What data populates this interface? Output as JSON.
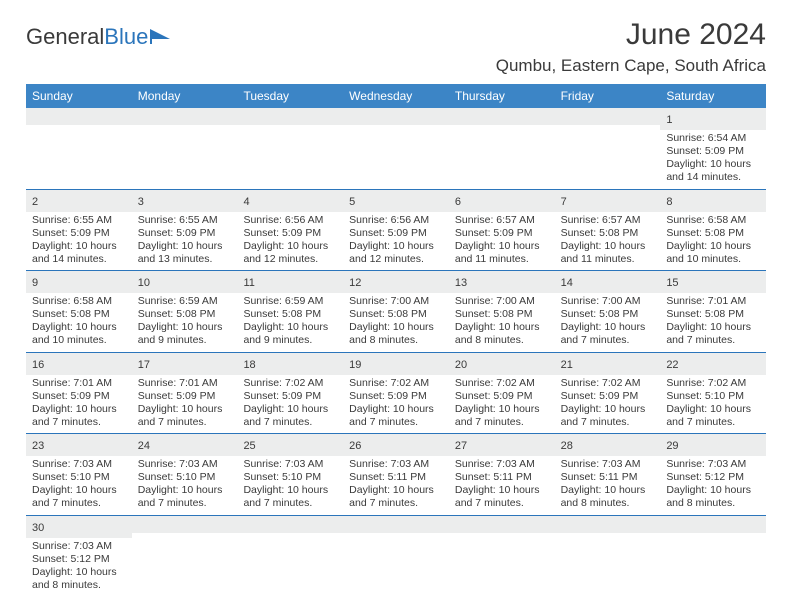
{
  "logo": {
    "text_general": "General",
    "text_blue": "Blue"
  },
  "header": {
    "month_title": "June 2024",
    "location": "Qumbu, Eastern Cape, South Africa"
  },
  "colors": {
    "header_bg": "#3c85c6",
    "header_text": "#ffffff",
    "divider": "#2b75bb",
    "daynum_bg": "#eceded",
    "text": "#3a3a3a",
    "page_bg": "#ffffff"
  },
  "weekdays": [
    "Sunday",
    "Monday",
    "Tuesday",
    "Wednesday",
    "Thursday",
    "Friday",
    "Saturday"
  ],
  "weeks": [
    [
      {
        "num": "",
        "sunrise": "",
        "sunset": "",
        "daylight": ""
      },
      {
        "num": "",
        "sunrise": "",
        "sunset": "",
        "daylight": ""
      },
      {
        "num": "",
        "sunrise": "",
        "sunset": "",
        "daylight": ""
      },
      {
        "num": "",
        "sunrise": "",
        "sunset": "",
        "daylight": ""
      },
      {
        "num": "",
        "sunrise": "",
        "sunset": "",
        "daylight": ""
      },
      {
        "num": "",
        "sunrise": "",
        "sunset": "",
        "daylight": ""
      },
      {
        "num": "1",
        "sunrise": "Sunrise: 6:54 AM",
        "sunset": "Sunset: 5:09 PM",
        "daylight": "Daylight: 10 hours and 14 minutes."
      }
    ],
    [
      {
        "num": "2",
        "sunrise": "Sunrise: 6:55 AM",
        "sunset": "Sunset: 5:09 PM",
        "daylight": "Daylight: 10 hours and 14 minutes."
      },
      {
        "num": "3",
        "sunrise": "Sunrise: 6:55 AM",
        "sunset": "Sunset: 5:09 PM",
        "daylight": "Daylight: 10 hours and 13 minutes."
      },
      {
        "num": "4",
        "sunrise": "Sunrise: 6:56 AM",
        "sunset": "Sunset: 5:09 PM",
        "daylight": "Daylight: 10 hours and 12 minutes."
      },
      {
        "num": "5",
        "sunrise": "Sunrise: 6:56 AM",
        "sunset": "Sunset: 5:09 PM",
        "daylight": "Daylight: 10 hours and 12 minutes."
      },
      {
        "num": "6",
        "sunrise": "Sunrise: 6:57 AM",
        "sunset": "Sunset: 5:09 PM",
        "daylight": "Daylight: 10 hours and 11 minutes."
      },
      {
        "num": "7",
        "sunrise": "Sunrise: 6:57 AM",
        "sunset": "Sunset: 5:08 PM",
        "daylight": "Daylight: 10 hours and 11 minutes."
      },
      {
        "num": "8",
        "sunrise": "Sunrise: 6:58 AM",
        "sunset": "Sunset: 5:08 PM",
        "daylight": "Daylight: 10 hours and 10 minutes."
      }
    ],
    [
      {
        "num": "9",
        "sunrise": "Sunrise: 6:58 AM",
        "sunset": "Sunset: 5:08 PM",
        "daylight": "Daylight: 10 hours and 10 minutes."
      },
      {
        "num": "10",
        "sunrise": "Sunrise: 6:59 AM",
        "sunset": "Sunset: 5:08 PM",
        "daylight": "Daylight: 10 hours and 9 minutes."
      },
      {
        "num": "11",
        "sunrise": "Sunrise: 6:59 AM",
        "sunset": "Sunset: 5:08 PM",
        "daylight": "Daylight: 10 hours and 9 minutes."
      },
      {
        "num": "12",
        "sunrise": "Sunrise: 7:00 AM",
        "sunset": "Sunset: 5:08 PM",
        "daylight": "Daylight: 10 hours and 8 minutes."
      },
      {
        "num": "13",
        "sunrise": "Sunrise: 7:00 AM",
        "sunset": "Sunset: 5:08 PM",
        "daylight": "Daylight: 10 hours and 8 minutes."
      },
      {
        "num": "14",
        "sunrise": "Sunrise: 7:00 AM",
        "sunset": "Sunset: 5:08 PM",
        "daylight": "Daylight: 10 hours and 7 minutes."
      },
      {
        "num": "15",
        "sunrise": "Sunrise: 7:01 AM",
        "sunset": "Sunset: 5:08 PM",
        "daylight": "Daylight: 10 hours and 7 minutes."
      }
    ],
    [
      {
        "num": "16",
        "sunrise": "Sunrise: 7:01 AM",
        "sunset": "Sunset: 5:09 PM",
        "daylight": "Daylight: 10 hours and 7 minutes."
      },
      {
        "num": "17",
        "sunrise": "Sunrise: 7:01 AM",
        "sunset": "Sunset: 5:09 PM",
        "daylight": "Daylight: 10 hours and 7 minutes."
      },
      {
        "num": "18",
        "sunrise": "Sunrise: 7:02 AM",
        "sunset": "Sunset: 5:09 PM",
        "daylight": "Daylight: 10 hours and 7 minutes."
      },
      {
        "num": "19",
        "sunrise": "Sunrise: 7:02 AM",
        "sunset": "Sunset: 5:09 PM",
        "daylight": "Daylight: 10 hours and 7 minutes."
      },
      {
        "num": "20",
        "sunrise": "Sunrise: 7:02 AM",
        "sunset": "Sunset: 5:09 PM",
        "daylight": "Daylight: 10 hours and 7 minutes."
      },
      {
        "num": "21",
        "sunrise": "Sunrise: 7:02 AM",
        "sunset": "Sunset: 5:09 PM",
        "daylight": "Daylight: 10 hours and 7 minutes."
      },
      {
        "num": "22",
        "sunrise": "Sunrise: 7:02 AM",
        "sunset": "Sunset: 5:10 PM",
        "daylight": "Daylight: 10 hours and 7 minutes."
      }
    ],
    [
      {
        "num": "23",
        "sunrise": "Sunrise: 7:03 AM",
        "sunset": "Sunset: 5:10 PM",
        "daylight": "Daylight: 10 hours and 7 minutes."
      },
      {
        "num": "24",
        "sunrise": "Sunrise: 7:03 AM",
        "sunset": "Sunset: 5:10 PM",
        "daylight": "Daylight: 10 hours and 7 minutes."
      },
      {
        "num": "25",
        "sunrise": "Sunrise: 7:03 AM",
        "sunset": "Sunset: 5:10 PM",
        "daylight": "Daylight: 10 hours and 7 minutes."
      },
      {
        "num": "26",
        "sunrise": "Sunrise: 7:03 AM",
        "sunset": "Sunset: 5:11 PM",
        "daylight": "Daylight: 10 hours and 7 minutes."
      },
      {
        "num": "27",
        "sunrise": "Sunrise: 7:03 AM",
        "sunset": "Sunset: 5:11 PM",
        "daylight": "Daylight: 10 hours and 7 minutes."
      },
      {
        "num": "28",
        "sunrise": "Sunrise: 7:03 AM",
        "sunset": "Sunset: 5:11 PM",
        "daylight": "Daylight: 10 hours and 8 minutes."
      },
      {
        "num": "29",
        "sunrise": "Sunrise: 7:03 AM",
        "sunset": "Sunset: 5:12 PM",
        "daylight": "Daylight: 10 hours and 8 minutes."
      }
    ],
    [
      {
        "num": "30",
        "sunrise": "Sunrise: 7:03 AM",
        "sunset": "Sunset: 5:12 PM",
        "daylight": "Daylight: 10 hours and 8 minutes."
      },
      {
        "num": "",
        "sunrise": "",
        "sunset": "",
        "daylight": ""
      },
      {
        "num": "",
        "sunrise": "",
        "sunset": "",
        "daylight": ""
      },
      {
        "num": "",
        "sunrise": "",
        "sunset": "",
        "daylight": ""
      },
      {
        "num": "",
        "sunrise": "",
        "sunset": "",
        "daylight": ""
      },
      {
        "num": "",
        "sunrise": "",
        "sunset": "",
        "daylight": ""
      },
      {
        "num": "",
        "sunrise": "",
        "sunset": "",
        "daylight": ""
      }
    ]
  ]
}
